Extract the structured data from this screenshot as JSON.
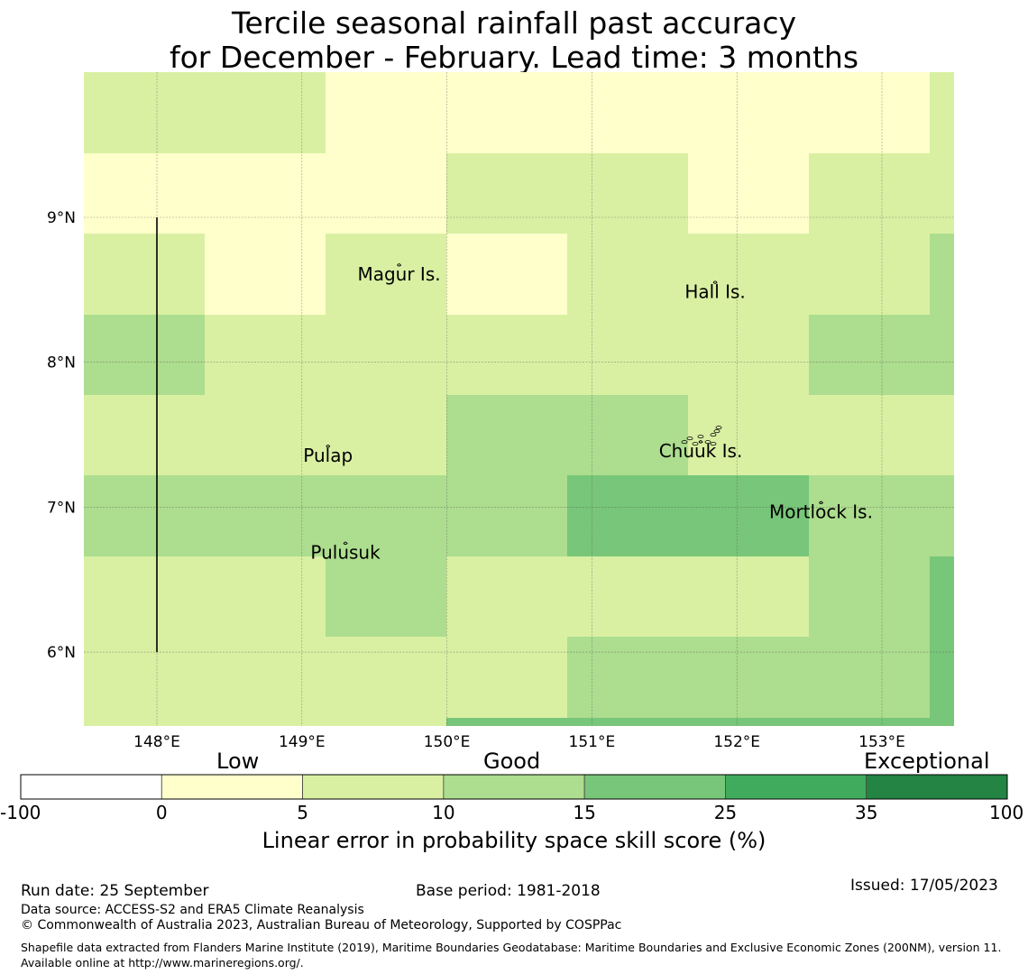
{
  "title_line1": "Tercile seasonal rainfall past accuracy",
  "title_line2": "for December - February. Lead time: 3 months",
  "map": {
    "lon_range": [
      147.5,
      153.5
    ],
    "lat_range": [
      5.5,
      10.0
    ],
    "lon_ticks": [
      "148°E",
      "149°E",
      "150°E",
      "151°E",
      "152°E",
      "153°E"
    ],
    "lat_ticks": [
      "9°N",
      "8°N",
      "7°N",
      "6°N"
    ],
    "grid_columns": 8,
    "grid_rows": 8,
    "skill_grid_classes": [
      [
        2,
        2,
        1,
        1,
        1,
        1,
        1,
        2
      ],
      [
        1,
        1,
        1,
        2,
        2,
        1,
        2,
        2
      ],
      [
        2,
        1,
        2,
        1,
        2,
        2,
        2,
        3
      ],
      [
        3,
        2,
        2,
        2,
        2,
        2,
        3,
        3
      ],
      [
        2,
        2,
        2,
        3,
        3,
        2,
        2,
        2
      ],
      [
        3,
        3,
        3,
        3,
        4,
        4,
        3,
        3
      ],
      [
        2,
        2,
        3,
        2,
        2,
        2,
        3,
        4
      ],
      [
        2,
        2,
        2,
        2,
        3,
        3,
        3,
        4
      ]
    ],
    "islands": [
      {
        "name": "Magur Is.",
        "lon": 149.67,
        "lat": 8.62
      },
      {
        "name": "Hall Is.",
        "lon": 151.85,
        "lat": 8.5
      },
      {
        "name": "Pulap",
        "lon": 149.18,
        "lat": 7.37
      },
      {
        "name": "Chuuk Is.",
        "lon": 151.75,
        "lat": 7.4
      },
      {
        "name": "Mortlock Is.",
        "lon": 152.58,
        "lat": 6.98
      },
      {
        "name": "Pulusuk",
        "lon": 149.3,
        "lat": 6.7
      }
    ],
    "boundary_line_lon": 148.0,
    "boundary_line_lat": [
      6.0,
      9.0
    ]
  },
  "colorbar": {
    "categories": [
      "Low",
      "Good",
      "Exceptional"
    ],
    "ticks": [
      "-100",
      "0",
      "5",
      "10",
      "15",
      "25",
      "35",
      "100"
    ],
    "colors": [
      "#ffffff",
      "#ffffcc",
      "#d9f0a3",
      "#addd8e",
      "#78c679",
      "#41ab5d",
      "#238443"
    ],
    "label": "Linear error in probability space skill score (%)"
  },
  "footer": {
    "run_date": "Run date: 25 September",
    "base_period": "Base period: 1981-2018",
    "issued": "Issued: 17/05/2023",
    "data_source": "Data source: ACCESS-S2 and ERA5 Climate Reanalysis",
    "copyright": "© Commonwealth of Australia 2023, Australian Bureau of Meteorology, Supported by COSPPac",
    "shapefile": "Shapefile data extracted from Flanders Marine Institute (2019), Maritime Boundaries Geodatabase: Maritime Boundaries and Exclusive Economic Zones (200NM), version 11. Available online at http://www.marineregions.org/."
  }
}
